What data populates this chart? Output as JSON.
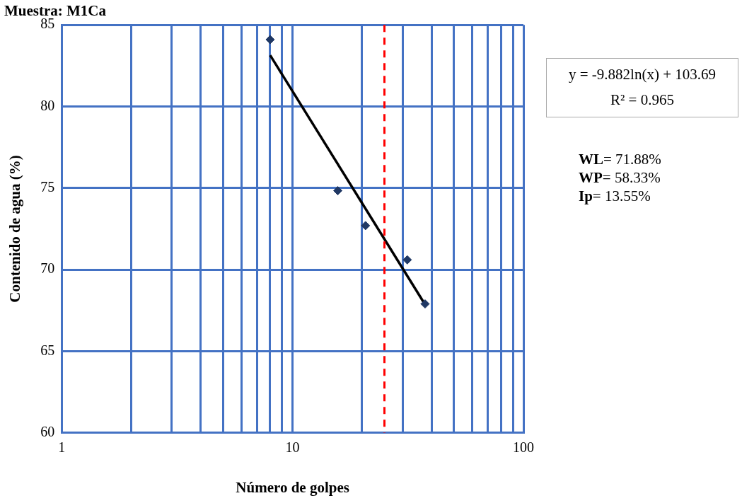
{
  "chart_data": {
    "type": "scatter",
    "title": "Muestra: M1Ca",
    "xlabel": "Número de golpes",
    "ylabel": "Contenido de agua (%)",
    "log": "x",
    "grid": true,
    "legend": false,
    "marker": "diamond",
    "xlim": [
      1,
      100
    ],
    "xticks": [
      1,
      {
        "value": 2,
        "label": null
      },
      {
        "value": 3,
        "label": null
      },
      {
        "value": 4,
        "label": null
      },
      {
        "value": 5,
        "label": null
      },
      {
        "value": 6,
        "label": null
      },
      {
        "value": 7,
        "label": null
      },
      {
        "value": 8,
        "label": null
      },
      {
        "value": 9,
        "label": null
      },
      10,
      {
        "value": 20,
        "label": null
      },
      {
        "value": 30,
        "label": null
      },
      {
        "value": 40,
        "label": null
      },
      {
        "value": 50,
        "label": null
      },
      {
        "value": 60,
        "label": null
      },
      {
        "value": 70,
        "label": null
      },
      {
        "value": 80,
        "label": null
      },
      {
        "value": 90,
        "label": null
      },
      100
    ],
    "ylim": [
      60,
      85
    ],
    "yticks": [
      60,
      65,
      70,
      75,
      80,
      85
    ],
    "series": [
      {
        "type": "scatter",
        "color": "#203864",
        "x": [
          8,
          15.7,
          20.7,
          31.4,
          37.5
        ],
        "values": [
          84.1,
          74.84,
          72.7,
          70.6,
          67.9
        ]
      },
      {
        "type": "line",
        "color": "#000000",
        "marker": "none",
        "x": [
          8,
          37.5
        ],
        "values": [
          83.14,
          67.86
        ]
      }
    ],
    "ref_lines": [
      {
        "axis": "x",
        "value": 25,
        "color": "#ff0000",
        "line_style": "dashed"
      }
    ],
    "annotations": [
      "y = -9.882ln(x) + 103.69",
      "R² = 0.965",
      "WL= 71.88%",
      "WP= 58.33%",
      "Ip= 13.55%"
    ]
  }
}
